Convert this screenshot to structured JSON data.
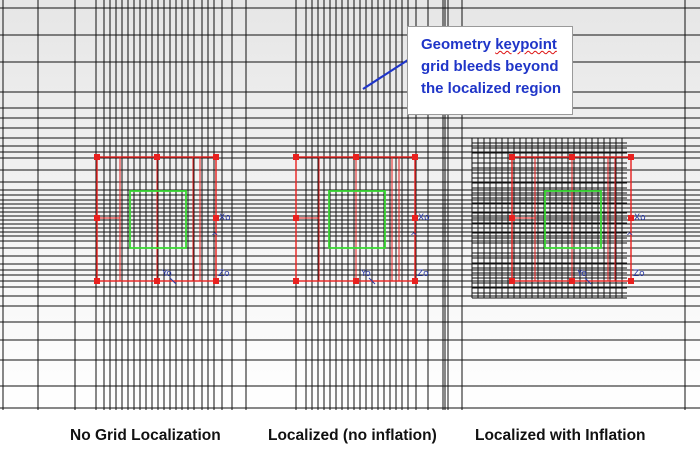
{
  "callout": {
    "line1": "Geometry keypoint",
    "line2": "grid bleeds beyond",
    "line3": "the localized region"
  },
  "panels": [
    {
      "caption": "No Grid Localization",
      "grid_extent": "full",
      "inflated": false
    },
    {
      "caption": "Localized (no inflation)",
      "grid_extent": "full",
      "inflated": false
    },
    {
      "caption": "Localized with Inflation",
      "grid_extent": "local",
      "inflated": true
    }
  ],
  "vertex_labels": {
    "xo": "Xo",
    "yo": "Yo",
    "zo": "Zo",
    "arrow": "^"
  },
  "colors": {
    "grid": "#111111",
    "geometry_outline": "#e8201e",
    "keypoint": "#e8201e",
    "inner_region": "#39d833",
    "callout_text": "#1f35c8",
    "callout_pointer": "#1f35c8",
    "vertex_label": "#2b3aa8",
    "background_gradient_top": "#e6e6e6",
    "background_gradient_bottom": "#ffffff"
  }
}
